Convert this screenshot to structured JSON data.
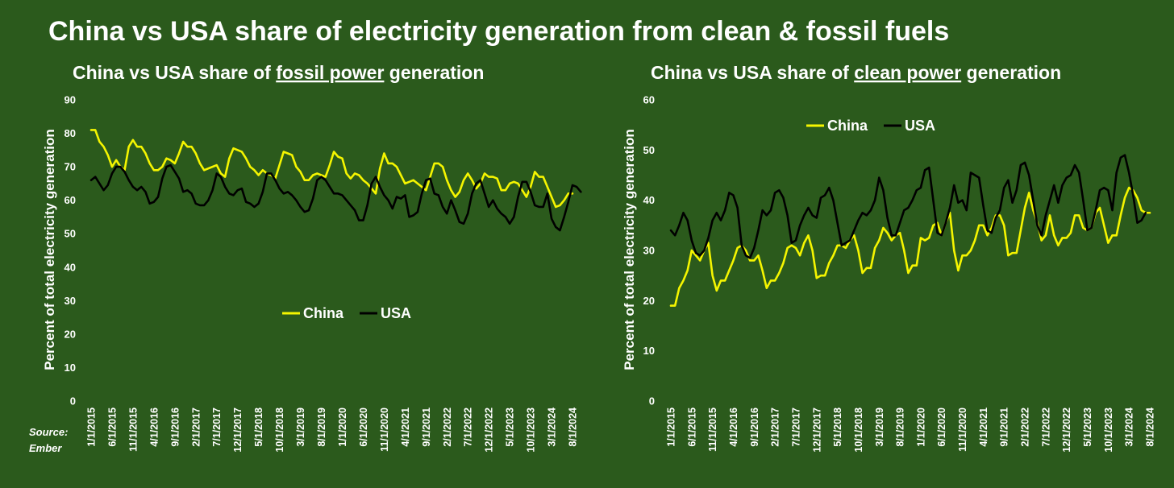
{
  "page": {
    "title": "China vs USA share of electricity generation from clean & fossil fuels",
    "source_line1": "Source:",
    "source_line2": "Ember"
  },
  "colors": {
    "background": "#2b5a1c",
    "china": "#f5f500",
    "usa": "#000000",
    "text": "#ffffff"
  },
  "x_tick_labels": [
    "1/1/2015",
    "6/1/2015",
    "11/1/2015",
    "4/1/2016",
    "9/1/2016",
    "2/1/2017",
    "7/1/2017",
    "12/1/2017",
    "5/1/2018",
    "10/1/2018",
    "3/1/2019",
    "8/1/2019",
    "1/1/2020",
    "6/1/2020",
    "11/1/2020",
    "4/1/2021",
    "9/1/2021",
    "2/1/2022",
    "7/1/2022",
    "12/1/2022",
    "5/1/2023",
    "10/1/2023",
    "3/1/2024",
    "8/1/2024"
  ],
  "chart_data": [
    {
      "type": "line",
      "title_pre": "China vs USA share of ",
      "title_underlined": "fossil power",
      "title_post": " generation",
      "xlabel": "",
      "ylabel": "Percent of total electricity generation",
      "ylim": [
        0,
        90
      ],
      "yticks": [
        0,
        10,
        20,
        30,
        40,
        50,
        60,
        70,
        80,
        90
      ],
      "x_range": [
        "1/1/2015",
        "9/1/2024"
      ],
      "legend_position": "center",
      "series": [
        {
          "name": "China",
          "values": [
            81,
            81,
            77.5,
            76,
            73.5,
            70,
            72,
            70,
            69,
            76,
            78,
            76,
            76,
            74,
            71,
            69,
            69,
            70,
            72.5,
            72,
            71,
            74,
            77.5,
            76,
            76,
            74,
            71,
            69,
            69.5,
            70,
            70.5,
            68,
            67,
            72.5,
            75.5,
            75,
            74.5,
            72.5,
            70,
            69,
            67.5,
            69,
            68,
            67.5,
            66.5,
            70.5,
            74.5,
            74,
            73.5,
            70,
            68.5,
            66,
            66,
            67.5,
            68,
            67.5,
            67,
            70.5,
            74.5,
            73,
            72.5,
            68,
            66.5,
            68,
            67.5,
            66,
            65,
            63.5,
            62,
            69.5,
            74,
            71,
            71,
            70,
            67.5,
            65,
            65.5,
            66,
            65,
            64,
            63,
            67,
            71,
            71,
            70,
            66,
            63,
            61,
            62.5,
            66,
            68,
            66,
            63.5,
            65,
            68,
            67,
            67,
            66.5,
            63,
            63,
            65,
            65.5,
            65,
            63,
            61,
            64,
            68.5,
            67,
            67,
            64,
            61,
            58,
            58.5,
            60,
            62,
            62
          ]
        },
        {
          "name": "USA",
          "values": [
            66,
            67,
            65,
            63,
            64.5,
            68,
            70,
            70,
            68.5,
            66,
            64,
            63,
            64,
            62.5,
            59,
            59.5,
            61,
            66.5,
            70,
            70.5,
            68.5,
            66.5,
            62.5,
            63,
            62,
            59,
            58.5,
            58.5,
            60,
            63,
            68,
            67,
            64,
            62,
            61.5,
            63,
            63.5,
            59.5,
            59,
            58,
            59,
            62.5,
            68,
            68,
            66,
            63.5,
            62,
            62.5,
            61.5,
            60,
            58,
            56.5,
            57,
            60.5,
            66,
            67,
            66,
            64,
            62,
            62,
            61.5,
            60,
            58.5,
            57,
            54,
            54,
            58.5,
            65,
            67,
            64,
            61.5,
            60,
            57.5,
            61,
            60.5,
            61.5,
            55,
            55.5,
            56.5,
            62,
            66,
            66.5,
            62,
            61.5,
            58,
            56,
            60,
            57,
            53.5,
            53,
            56,
            62,
            65,
            66,
            62,
            58,
            60,
            57.5,
            56,
            55,
            53,
            55,
            61,
            65.5,
            65.5,
            62.5,
            58.5,
            58,
            58,
            62,
            54.5,
            52,
            51,
            55,
            59.5,
            64.5,
            64,
            62.5
          ]
        }
      ]
    },
    {
      "type": "line",
      "title_pre": "China vs USA share of ",
      "title_underlined": "clean power",
      "title_post": " generation",
      "xlabel": "",
      "ylabel": "Percent of total electricity generation",
      "ylim": [
        0,
        60
      ],
      "yticks": [
        0,
        10,
        20,
        30,
        40,
        50,
        60
      ],
      "x_range": [
        "1/1/2015",
        "9/1/2024"
      ],
      "legend_position": "top-center",
      "series": [
        {
          "name": "China",
          "values": [
            19,
            19,
            22.5,
            24,
            26,
            30,
            29,
            28,
            30,
            31.5,
            25,
            22,
            24,
            24,
            26,
            28,
            30.5,
            31,
            30,
            28,
            28,
            29,
            26,
            22.5,
            24,
            24,
            25.5,
            27.5,
            30.5,
            31,
            30.5,
            29,
            31.5,
            33,
            30,
            24.5,
            25,
            25,
            27.5,
            29,
            31,
            31,
            30.5,
            32,
            33,
            30,
            25.5,
            26.5,
            26.5,
            30.5,
            32,
            34.5,
            33.5,
            32,
            33,
            33.5,
            30,
            25.5,
            27,
            27,
            32.5,
            32,
            32.5,
            35,
            35.5,
            33,
            35.5,
            37.5,
            30,
            26,
            29,
            29,
            30,
            32,
            35,
            35,
            33,
            34.5,
            37,
            37,
            35,
            29,
            29.5,
            29.5,
            34,
            38.5,
            41.5,
            38,
            35.5,
            32,
            33,
            37,
            33,
            31,
            32.5,
            32.5,
            33.5,
            37,
            37,
            34.5,
            34,
            34.5,
            37.5,
            38.5,
            35,
            31.5,
            33,
            33,
            37,
            40.5,
            42.5,
            42,
            40.5,
            38,
            37.5,
            37.5
          ]
        },
        {
          "name": "USA",
          "values": [
            34,
            33,
            35,
            37.5,
            36,
            32,
            29.5,
            29,
            30,
            32.5,
            36,
            37.5,
            36,
            38,
            41.5,
            41,
            38.5,
            31,
            29,
            28.5,
            30.5,
            34,
            38,
            37,
            38,
            41.5,
            42,
            40.5,
            37,
            31.5,
            32,
            35,
            37,
            38.5,
            37,
            36.5,
            40.5,
            41,
            42.5,
            40,
            35.5,
            31,
            31.5,
            32,
            34,
            36,
            37.5,
            37,
            38,
            40,
            44.5,
            42,
            36.5,
            33,
            33,
            35.5,
            38,
            38.5,
            40,
            42,
            42.5,
            46,
            46.5,
            40,
            33.5,
            33,
            35.5,
            38.5,
            43,
            39.5,
            40,
            38,
            45.5,
            45,
            44.5,
            39,
            34,
            33.5,
            36.5,
            38,
            42.5,
            44,
            39.5,
            42,
            47,
            47.5,
            45,
            40,
            35,
            33,
            37,
            40,
            43,
            39.5,
            43,
            44.5,
            45,
            47,
            45.5,
            40,
            34,
            34.5,
            38,
            42,
            42.5,
            42,
            38,
            45.5,
            48.5,
            49,
            45.5,
            41,
            35.5,
            36,
            37.5
          ]
        }
      ]
    }
  ]
}
